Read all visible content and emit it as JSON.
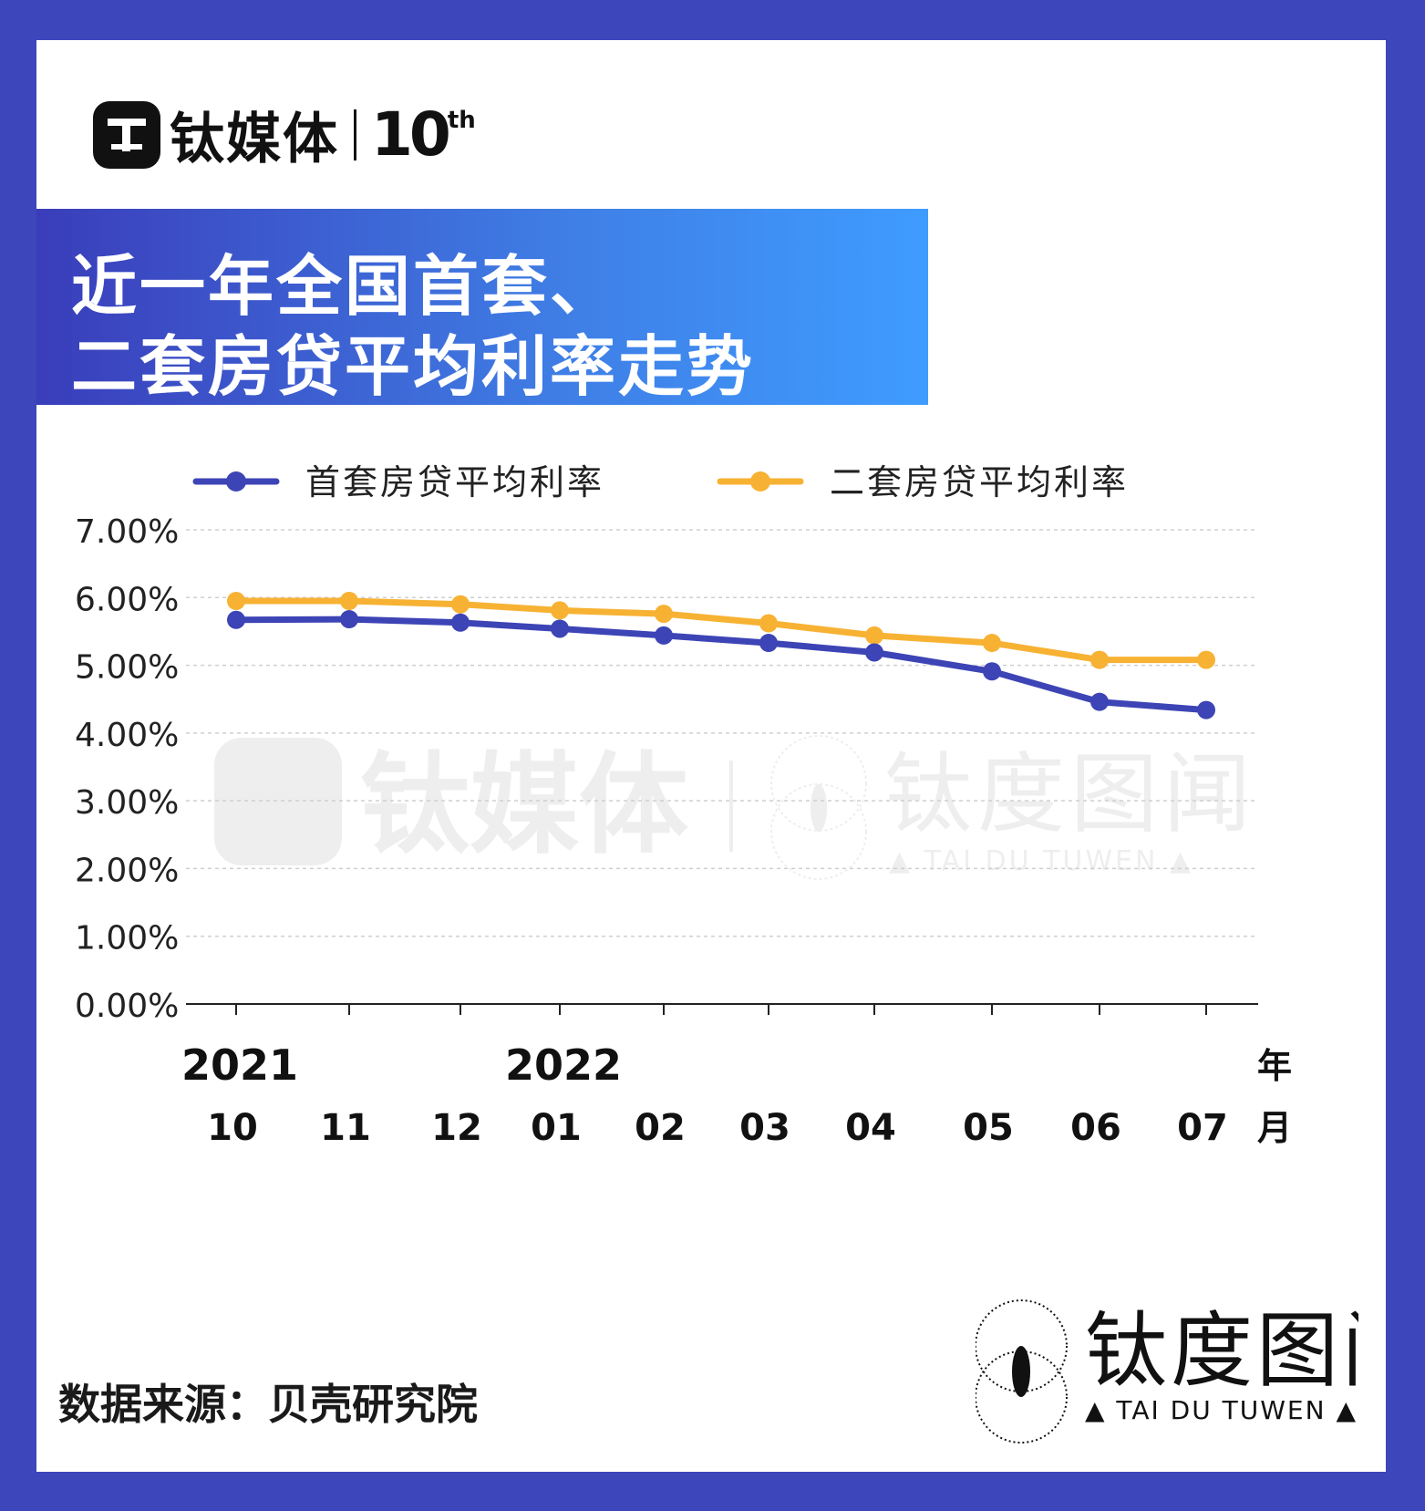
{
  "brand": {
    "name": "钛媒体",
    "anniversary": "10",
    "anniversary_suffix": "th",
    "mark": "T"
  },
  "title": {
    "line1": "近一年全国首套、",
    "line2": "二套房贷平均利率走势"
  },
  "watermark": {
    "cn": "钛度图闻",
    "en": "▲ TAI DU TUWEN ▲"
  },
  "footer_logo": {
    "cn": "钛度图闻",
    "en": "▲ TAI DU TUWEN ▲"
  },
  "source_note": "数据来源：贝壳研究院",
  "colors": {
    "first": "#3d44b5",
    "second": "#f7b233",
    "frame": "#3d46bb"
  },
  "chart_data": {
    "type": "line",
    "categories": [
      "10",
      "11",
      "12",
      "01",
      "02",
      "03",
      "04",
      "05",
      "06",
      "07"
    ],
    "year_labels": [
      {
        "index": 0,
        "label": "2021"
      },
      {
        "index": 3,
        "label": "2022"
      }
    ],
    "year_unit": "年",
    "month_unit": "月",
    "series": [
      {
        "name": "首套房贷平均利率",
        "color": "#3d44b5",
        "values": [
          5.67,
          5.68,
          5.63,
          5.54,
          5.44,
          5.33,
          5.19,
          4.91,
          4.46,
          4.34
        ]
      },
      {
        "name": "二套房贷平均利率",
        "color": "#f7b233",
        "values": [
          5.95,
          5.95,
          5.9,
          5.81,
          5.76,
          5.62,
          5.44,
          5.33,
          5.08,
          5.08
        ]
      }
    ],
    "yticks": [
      "0.00%",
      "1.00%",
      "2.00%",
      "3.00%",
      "4.00%",
      "5.00%",
      "6.00%",
      "7.00%"
    ],
    "ylim": [
      0,
      7
    ],
    "grid": true,
    "legend": "top"
  }
}
